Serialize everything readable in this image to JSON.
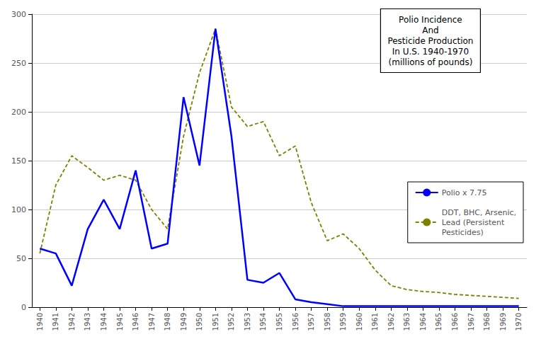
{
  "chart_data": {
    "type": "line",
    "title": "Polio Incidence\nAnd\nPesticide Production\nIn U.S. 1940-1970\n(millions of pounds)",
    "x": [
      1940,
      1941,
      1942,
      1943,
      1944,
      1945,
      1946,
      1947,
      1948,
      1949,
      1950,
      1951,
      1952,
      1953,
      1954,
      1955,
      1956,
      1957,
      1958,
      1959,
      1960,
      1961,
      1962,
      1963,
      1964,
      1965,
      1966,
      1967,
      1968,
      1969,
      1970
    ],
    "series": [
      {
        "name": "Polio x 7.75",
        "color": "#0000FF",
        "line_style": "solid",
        "values": [
          60,
          55,
          22,
          80,
          110,
          80,
          140,
          60,
          65,
          215,
          145,
          285,
          175,
          28,
          25,
          35,
          8,
          5,
          3,
          1,
          1,
          1,
          1,
          1,
          1,
          1,
          1,
          1,
          1,
          1,
          1
        ]
      },
      {
        "name": "DDT, BHC, Arsenic,\nLead (Persistent\nPesticides)",
        "color": "#808000",
        "line_style": "dashed",
        "values": [
          55,
          125,
          155,
          143,
          130,
          135,
          130,
          100,
          80,
          175,
          240,
          285,
          205,
          185,
          190,
          155,
          165,
          107,
          68,
          75,
          60,
          38,
          22,
          18,
          16,
          15,
          13,
          12,
          11,
          10,
          9
        ]
      }
    ],
    "xlim": [
      1939.5,
      1970.5
    ],
    "xticks": [
      1940,
      1941,
      1942,
      1943,
      1944,
      1945,
      1946,
      1947,
      1948,
      1949,
      1950,
      1951,
      1952,
      1953,
      1954,
      1955,
      1956,
      1957,
      1958,
      1959,
      1960,
      1961,
      1962,
      1963,
      1964,
      1965,
      1966,
      1967,
      1968,
      1969,
      1970
    ],
    "ylim": [
      0,
      300
    ],
    "yticks": [
      0,
      50,
      100,
      150,
      200,
      250,
      300
    ],
    "grid": "y",
    "legend": "lower right"
  }
}
